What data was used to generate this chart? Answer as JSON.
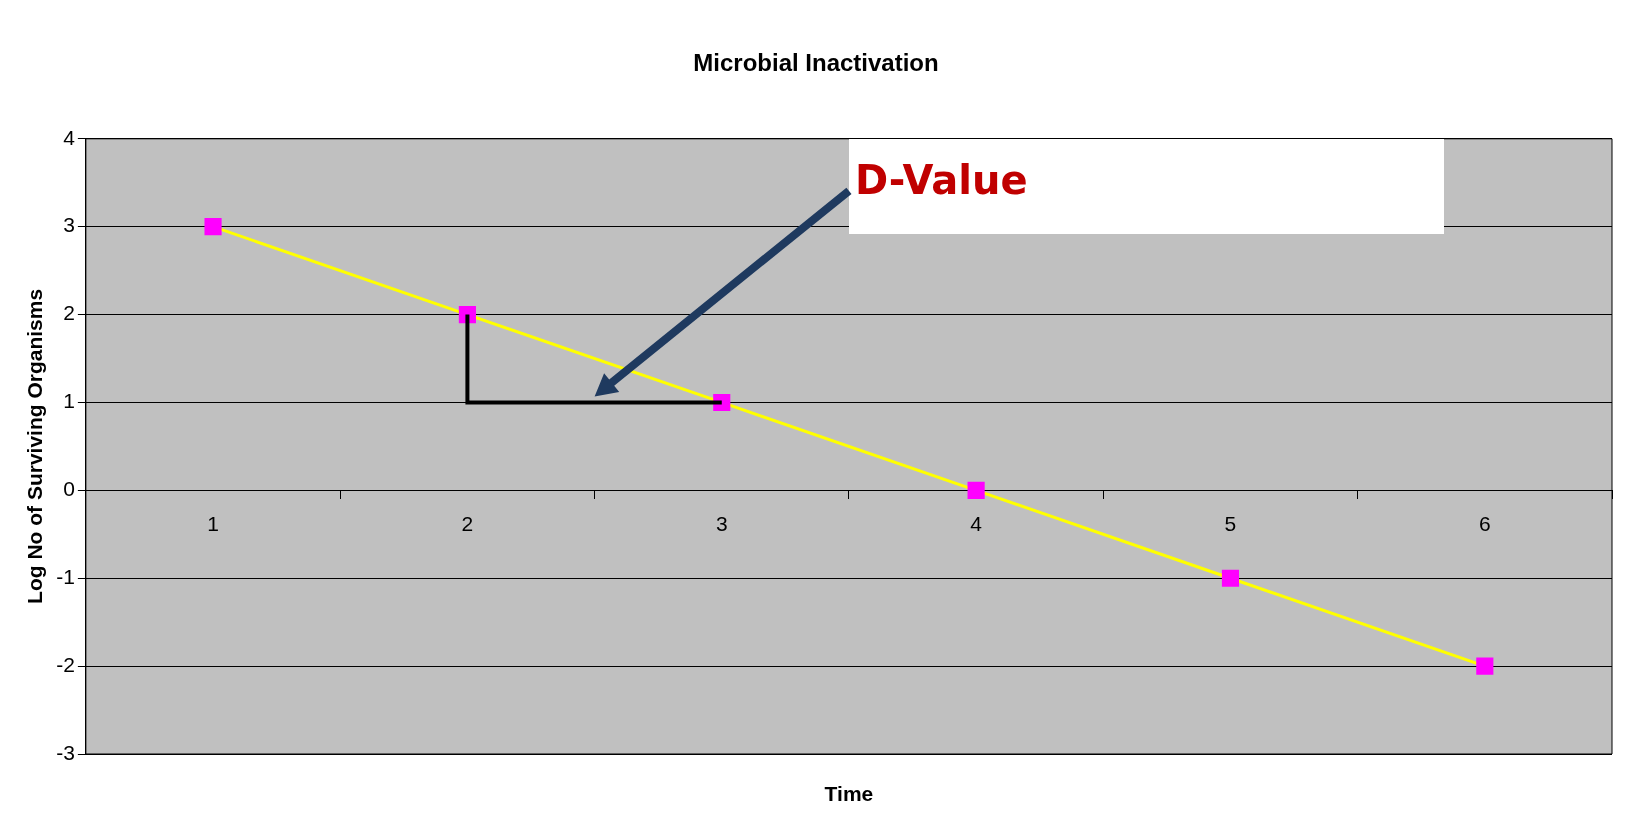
{
  "chart_data": {
    "type": "line",
    "title": "Microbial Inactivation",
    "xlabel": "Time",
    "ylabel": "Log No of Surviving Organisms",
    "categories": [
      "1",
      "2",
      "3",
      "4",
      "5",
      "6"
    ],
    "series": [
      {
        "color": "#ffff00",
        "values": [
          3,
          2,
          1,
          0,
          -1,
          -2
        ]
      }
    ],
    "ylim": [
      -3,
      4
    ],
    "yticks": [
      -3,
      -2,
      -1,
      0,
      1,
      2,
      3,
      4
    ],
    "grid": "y",
    "legend": false,
    "marker": "square",
    "line_style": "solid",
    "annotations": [
      "D-Value"
    ]
  }
}
